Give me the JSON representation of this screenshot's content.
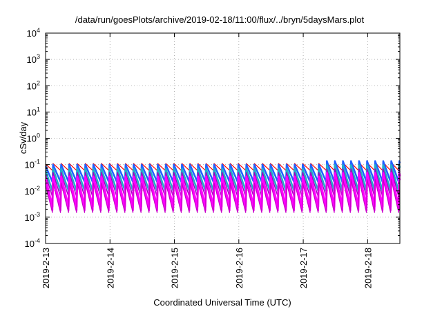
{
  "chart_data": {
    "type": "line",
    "title": "/data/run/goesPlots/archive/2019-02-18/11:00/flux/../bryn/5daysMars.plot",
    "xlabel": "Coordinated Universal Time (UTC)",
    "ylabel": "cSv/day",
    "y_scale": "log",
    "ylim_exponent": [
      -4,
      4
    ],
    "y_ticks": [
      {
        "base": "10",
        "exp": "4"
      },
      {
        "base": "10",
        "exp": "3"
      },
      {
        "base": "10",
        "exp": "2"
      },
      {
        "base": "10",
        "exp": "1"
      },
      {
        "base": "10",
        "exp": "0"
      },
      {
        "base": "10",
        "exp": "-1"
      },
      {
        "base": "10",
        "exp": "-2"
      },
      {
        "base": "10",
        "exp": "-3"
      },
      {
        "base": "10",
        "exp": "-4"
      }
    ],
    "xlim": [
      "2019-02-13",
      "2019-02-18 12:00"
    ],
    "x_ticks": [
      "2019-2-13",
      "2019-2-14",
      "2019-2-15",
      "2019-2-16",
      "2019-2-17",
      "2019-2-18"
    ],
    "grid": true,
    "pattern": {
      "pulses_per_day": 8,
      "series_count": 7,
      "peak_value": 0.11,
      "min_value_lowest_series": 0.0015,
      "elevated_peak_period": [
        "2019-02-17 06:00",
        "2019-02-18 12:00"
      ],
      "elevated_peak_value": 0.15
    },
    "series": [
      {
        "color": "#ff0000",
        "peak": 0.11,
        "trough": 0.06
      },
      {
        "color": "#2060ff",
        "peak": 0.1,
        "trough": 0.022
      },
      {
        "color": "#20b0c8",
        "peak": 0.07,
        "trough": 0.01
      },
      {
        "color": "#a000c0",
        "peak": 0.05,
        "trough": 0.006
      },
      {
        "color": "#ff00ff",
        "peak": 0.035,
        "trough": 0.0025
      },
      {
        "color": "#ff00ff",
        "peak": 0.025,
        "trough": 0.0018
      },
      {
        "color": "#c800c8",
        "peak": 0.02,
        "trough": 0.0015
      }
    ]
  }
}
